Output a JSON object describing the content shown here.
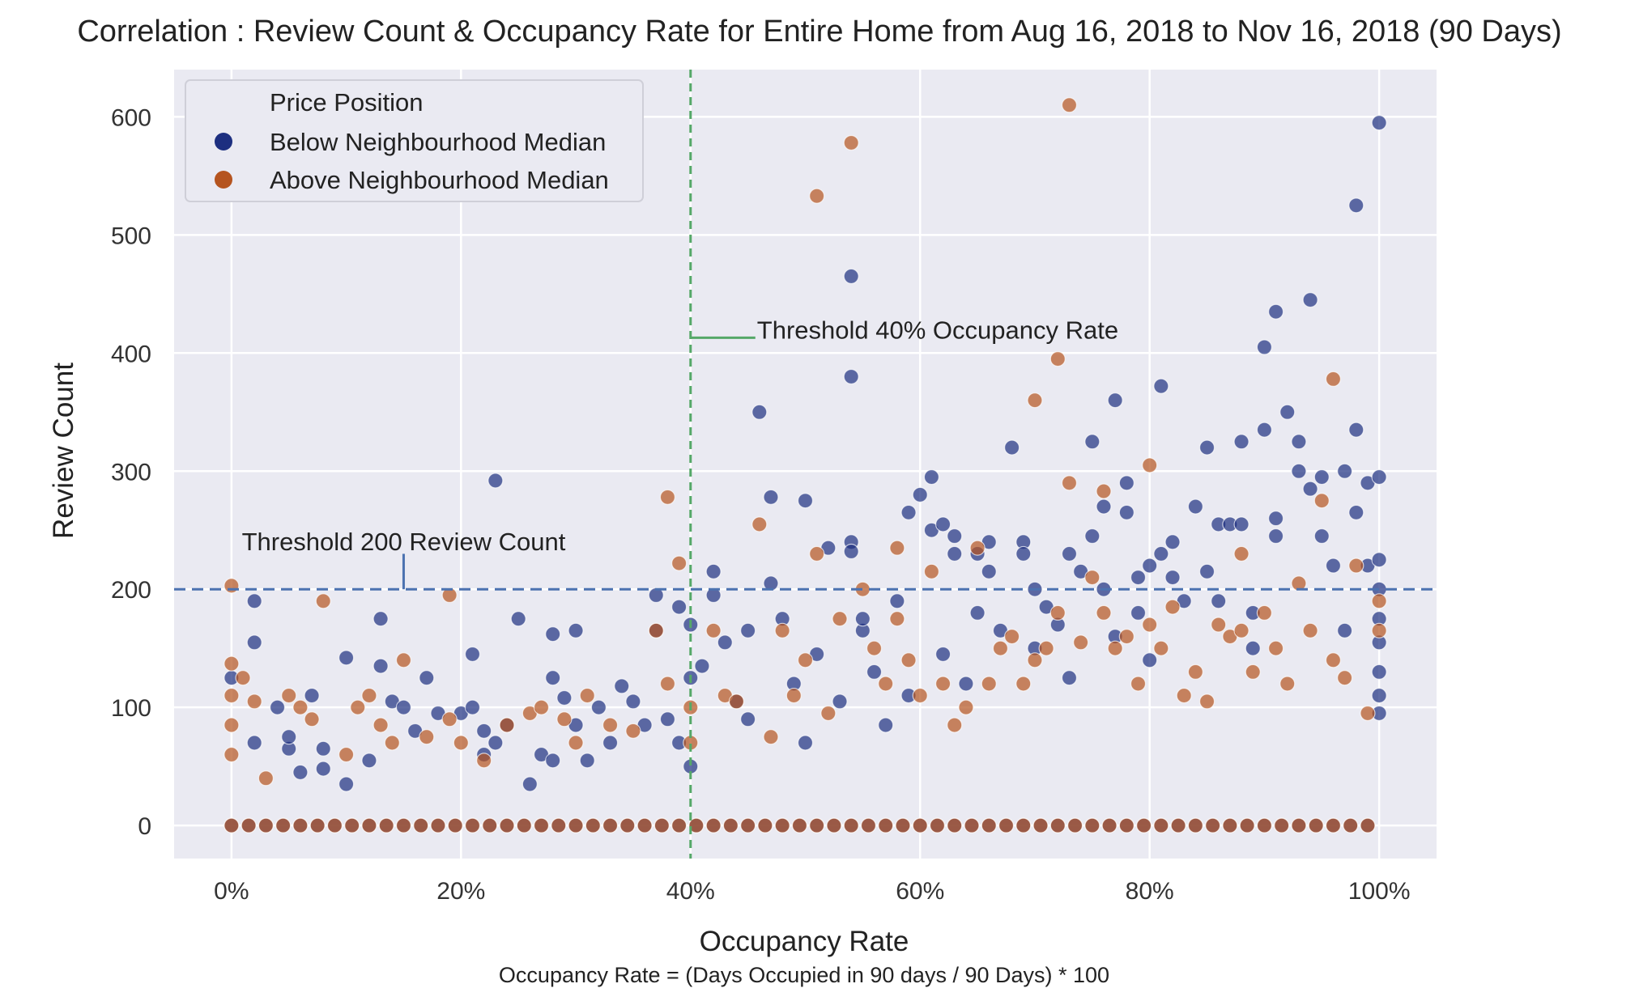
{
  "chart_data": {
    "type": "scatter",
    "title": "Correlation : Review Count & Occupancy Rate for Entire Home from Aug 16, 2018 to Nov 16, 2018 (90 Days)",
    "xlabel": "Occupancy Rate",
    "ylabel": "Review Count",
    "x_note": "Occupancy Rate = (Days Occupied in 90 days / 90 Days) * 100",
    "xlim": [
      -5,
      105
    ],
    "ylim": [
      -28,
      640
    ],
    "x_ticks": [
      0,
      20,
      40,
      60,
      80,
      100
    ],
    "x_tick_labels": [
      "0%",
      "20%",
      "40%",
      "60%",
      "80%",
      "100%"
    ],
    "y_ticks": [
      0,
      100,
      200,
      300,
      400,
      500,
      600
    ],
    "y_tick_labels": [
      "0",
      "100",
      "200",
      "300",
      "400",
      "500",
      "600"
    ],
    "grid": true,
    "legend": {
      "title": "Price Position",
      "position": "upper-left",
      "entries": [
        "Below Neighbourhood Median",
        "Above Neighbourhood Median"
      ]
    },
    "thresholds": [
      {
        "axis": "x",
        "value": 40,
        "label": "Threshold 40% Occupancy Rate",
        "color": "#55a868"
      },
      {
        "axis": "y",
        "value": 200,
        "label": "Threshold 200 Review Count",
        "color": "#4c72b0"
      }
    ],
    "series": [
      {
        "name": "Below Neighbourhood Median",
        "color": "#1d2f80",
        "points": [
          [
            0,
            125
          ],
          [
            2,
            70
          ],
          [
            2,
            155
          ],
          [
            2,
            190
          ],
          [
            4,
            100
          ],
          [
            5,
            65
          ],
          [
            5,
            75
          ],
          [
            6,
            45
          ],
          [
            7,
            110
          ],
          [
            8,
            48
          ],
          [
            8,
            65
          ],
          [
            10,
            35
          ],
          [
            10,
            142
          ],
          [
            12,
            55
          ],
          [
            13,
            175
          ],
          [
            13,
            135
          ],
          [
            14,
            105
          ],
          [
            15,
            100
          ],
          [
            16,
            80
          ],
          [
            17,
            125
          ],
          [
            18,
            95
          ],
          [
            20,
            95
          ],
          [
            21,
            100
          ],
          [
            21,
            145
          ],
          [
            22,
            60
          ],
          [
            22,
            80
          ],
          [
            23,
            70
          ],
          [
            23,
            292
          ],
          [
            24,
            85
          ],
          [
            25,
            175
          ],
          [
            26,
            35
          ],
          [
            27,
            60
          ],
          [
            28,
            55
          ],
          [
            28,
            125
          ],
          [
            28,
            162
          ],
          [
            29,
            108
          ],
          [
            30,
            85
          ],
          [
            30,
            165
          ],
          [
            31,
            55
          ],
          [
            32,
            100
          ],
          [
            33,
            70
          ],
          [
            34,
            118
          ],
          [
            35,
            105
          ],
          [
            36,
            85
          ],
          [
            37,
            195
          ],
          [
            37,
            165
          ],
          [
            38,
            90
          ],
          [
            39,
            185
          ],
          [
            39,
            70
          ],
          [
            40,
            170
          ],
          [
            40,
            125
          ],
          [
            40,
            50
          ],
          [
            41,
            135
          ],
          [
            42,
            215
          ],
          [
            42,
            195
          ],
          [
            43,
            155
          ],
          [
            44,
            105
          ],
          [
            45,
            165
          ],
          [
            45,
            90
          ],
          [
            46,
            350
          ],
          [
            47,
            205
          ],
          [
            47,
            278
          ],
          [
            48,
            175
          ],
          [
            49,
            120
          ],
          [
            50,
            70
          ],
          [
            50,
            275
          ],
          [
            51,
            145
          ],
          [
            52,
            235
          ],
          [
            53,
            105
          ],
          [
            54,
            240
          ],
          [
            54,
            232
          ],
          [
            54,
            380
          ],
          [
            54,
            465
          ],
          [
            55,
            165
          ],
          [
            55,
            175
          ],
          [
            56,
            130
          ],
          [
            57,
            85
          ],
          [
            58,
            190
          ],
          [
            59,
            110
          ],
          [
            59,
            265
          ],
          [
            60,
            280
          ],
          [
            61,
            295
          ],
          [
            61,
            250
          ],
          [
            62,
            255
          ],
          [
            62,
            145
          ],
          [
            63,
            245
          ],
          [
            63,
            230
          ],
          [
            64,
            120
          ],
          [
            65,
            230
          ],
          [
            65,
            180
          ],
          [
            66,
            215
          ],
          [
            66,
            240
          ],
          [
            67,
            165
          ],
          [
            68,
            320
          ],
          [
            69,
            240
          ],
          [
            69,
            230
          ],
          [
            70,
            200
          ],
          [
            70,
            150
          ],
          [
            71,
            185
          ],
          [
            72,
            170
          ],
          [
            73,
            230
          ],
          [
            73,
            125
          ],
          [
            74,
            215
          ],
          [
            75,
            325
          ],
          [
            75,
            245
          ],
          [
            76,
            270
          ],
          [
            76,
            200
          ],
          [
            77,
            160
          ],
          [
            77,
            360
          ],
          [
            78,
            290
          ],
          [
            78,
            265
          ],
          [
            79,
            210
          ],
          [
            79,
            180
          ],
          [
            80,
            220
          ],
          [
            80,
            140
          ],
          [
            81,
            372
          ],
          [
            81,
            230
          ],
          [
            82,
            240
          ],
          [
            82,
            210
          ],
          [
            83,
            190
          ],
          [
            84,
            270
          ],
          [
            85,
            320
          ],
          [
            85,
            215
          ],
          [
            86,
            255
          ],
          [
            86,
            190
          ],
          [
            87,
            255
          ],
          [
            88,
            325
          ],
          [
            88,
            255
          ],
          [
            89,
            180
          ],
          [
            89,
            150
          ],
          [
            90,
            405
          ],
          [
            90,
            335
          ],
          [
            91,
            435
          ],
          [
            91,
            260
          ],
          [
            91,
            245
          ],
          [
            92,
            350
          ],
          [
            93,
            325
          ],
          [
            93,
            300
          ],
          [
            94,
            285
          ],
          [
            94,
            445
          ],
          [
            95,
            295
          ],
          [
            95,
            245
          ],
          [
            96,
            220
          ],
          [
            97,
            300
          ],
          [
            97,
            165
          ],
          [
            98,
            335
          ],
          [
            98,
            525
          ],
          [
            98,
            265
          ],
          [
            99,
            290
          ],
          [
            99,
            220
          ],
          [
            100,
            595
          ],
          [
            100,
            295
          ],
          [
            100,
            225
          ],
          [
            100,
            200
          ],
          [
            100,
            175
          ],
          [
            100,
            155
          ],
          [
            100,
            130
          ],
          [
            100,
            110
          ],
          [
            100,
            95
          ]
        ]
      },
      {
        "name": "Above Neighbourhood Median",
        "color": "#b5541f",
        "points": [
          [
            0,
            203
          ],
          [
            0,
            137
          ],
          [
            0,
            110
          ],
          [
            0,
            85
          ],
          [
            0,
            60
          ],
          [
            1,
            125
          ],
          [
            2,
            105
          ],
          [
            3,
            40
          ],
          [
            5,
            110
          ],
          [
            6,
            100
          ],
          [
            7,
            90
          ],
          [
            8,
            190
          ],
          [
            10,
            60
          ],
          [
            11,
            100
          ],
          [
            12,
            110
          ],
          [
            13,
            85
          ],
          [
            14,
            70
          ],
          [
            15,
            140
          ],
          [
            17,
            75
          ],
          [
            19,
            195
          ],
          [
            19,
            90
          ],
          [
            20,
            70
          ],
          [
            22,
            55
          ],
          [
            24,
            85
          ],
          [
            26,
            95
          ],
          [
            27,
            100
          ],
          [
            29,
            90
          ],
          [
            30,
            70
          ],
          [
            31,
            110
          ],
          [
            33,
            85
          ],
          [
            35,
            80
          ],
          [
            37,
            165
          ],
          [
            38,
            278
          ],
          [
            38,
            120
          ],
          [
            39,
            222
          ],
          [
            40,
            100
          ],
          [
            40,
            70
          ],
          [
            42,
            165
          ],
          [
            43,
            110
          ],
          [
            44,
            105
          ],
          [
            46,
            255
          ],
          [
            47,
            75
          ],
          [
            48,
            165
          ],
          [
            49,
            110
          ],
          [
            50,
            140
          ],
          [
            51,
            533
          ],
          [
            51,
            230
          ],
          [
            52,
            95
          ],
          [
            53,
            175
          ],
          [
            54,
            578
          ],
          [
            55,
            200
          ],
          [
            56,
            150
          ],
          [
            57,
            120
          ],
          [
            58,
            175
          ],
          [
            58,
            235
          ],
          [
            59,
            140
          ],
          [
            60,
            110
          ],
          [
            61,
            215
          ],
          [
            62,
            120
          ],
          [
            63,
            85
          ],
          [
            64,
            100
          ],
          [
            65,
            235
          ],
          [
            66,
            120
          ],
          [
            67,
            150
          ],
          [
            68,
            160
          ],
          [
            69,
            120
          ],
          [
            70,
            360
          ],
          [
            70,
            140
          ],
          [
            71,
            150
          ],
          [
            72,
            395
          ],
          [
            72,
            180
          ],
          [
            73,
            610
          ],
          [
            73,
            290
          ],
          [
            74,
            155
          ],
          [
            75,
            210
          ],
          [
            76,
            283
          ],
          [
            76,
            180
          ],
          [
            77,
            150
          ],
          [
            78,
            160
          ],
          [
            79,
            120
          ],
          [
            80,
            305
          ],
          [
            80,
            170
          ],
          [
            81,
            150
          ],
          [
            82,
            185
          ],
          [
            83,
            110
          ],
          [
            84,
            130
          ],
          [
            85,
            105
          ],
          [
            86,
            170
          ],
          [
            87,
            160
          ],
          [
            88,
            230
          ],
          [
            88,
            165
          ],
          [
            89,
            130
          ],
          [
            90,
            180
          ],
          [
            91,
            150
          ],
          [
            92,
            120
          ],
          [
            93,
            205
          ],
          [
            94,
            165
          ],
          [
            95,
            275
          ],
          [
            96,
            378
          ],
          [
            96,
            140
          ],
          [
            97,
            125
          ],
          [
            98,
            220
          ],
          [
            99,
            95
          ],
          [
            100,
            190
          ],
          [
            100,
            165
          ]
        ]
      }
    ]
  }
}
